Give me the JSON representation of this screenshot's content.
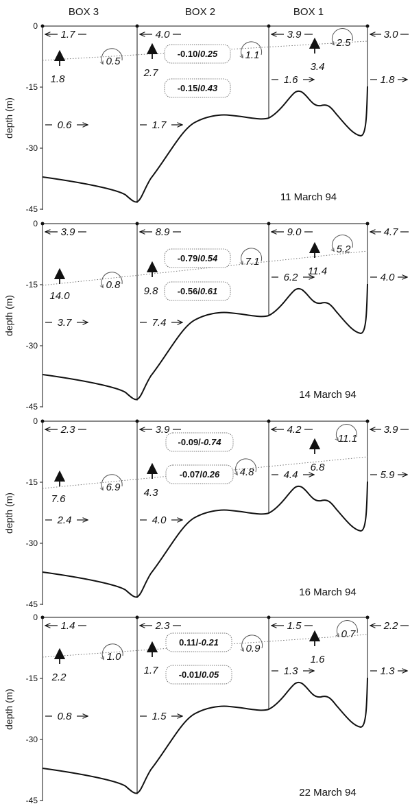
{
  "headers": {
    "box3": "BOX 3",
    "box2": "BOX 2",
    "box1": "BOX 1"
  },
  "axis": {
    "ylabel": "depth (m)",
    "ticks": [
      "0",
      "-15",
      "-30",
      "-45"
    ]
  },
  "panels": [
    {
      "date": "11 March 94",
      "top": {
        "w": "1.7",
        "b32": "4.0",
        "b21": "3.9",
        "e": "3.0"
      },
      "bottom": {
        "w": "0.6",
        "b32": "1.7",
        "b21": "1.6",
        "e": "1.8"
      },
      "vertical": {
        "b3": "1.8",
        "b2": "2.7",
        "b1": "3.4"
      },
      "mixing": {
        "b3": "0.5",
        "b2": "1.1",
        "b1": "2.5"
      },
      "flux_top": {
        "a": "-0.10/",
        "b": "0.25"
      },
      "flux_bottom": {
        "a": "-0.15/",
        "b": "0.43"
      }
    },
    {
      "date": "14 March 94",
      "top": {
        "w": "3.9",
        "b32": "8.9",
        "b21": "9.0",
        "e": "4.7"
      },
      "bottom": {
        "w": "3.7",
        "b32": "7.4",
        "b21": "6.2",
        "e": "4.0"
      },
      "vertical": {
        "b3": "14.0",
        "b2": "9.8",
        "b1": "11.4"
      },
      "mixing": {
        "b3": "0.8",
        "b2": "7.1",
        "b1": "5.2"
      },
      "flux_top": {
        "a": "-0.79/",
        "b": "0.54"
      },
      "flux_bottom": {
        "a": "-0.56/",
        "b": "0.61"
      }
    },
    {
      "date": "16 March 94",
      "top": {
        "w": "2.3",
        "b32": "3.9",
        "b21": "4.2",
        "e": "3.9"
      },
      "bottom": {
        "w": "2.4",
        "b32": "4.0",
        "b21": "4.4",
        "e": "5.9"
      },
      "vertical": {
        "b3": "7.6",
        "b2": "4.3",
        "b1": "6.8"
      },
      "mixing": {
        "b3": "6.9",
        "b2": "4.8",
        "b1": "11.1"
      },
      "flux_top": {
        "a": "-0.09/",
        "b": "-0.74"
      },
      "flux_bottom": {
        "a": "-0.07/",
        "b": "0.26"
      }
    },
    {
      "date": "22 March 94",
      "top": {
        "w": "1.4",
        "b32": "2.3",
        "b21": "1.5",
        "e": "2.2"
      },
      "bottom": {
        "w": "0.8",
        "b32": "1.5",
        "b21": "1.3",
        "e": "1.3"
      },
      "vertical": {
        "b3": "2.2",
        "b2": "1.7",
        "b1": "1.6"
      },
      "mixing": {
        "b3": "1.0",
        "b2": "0.9",
        "b1": "0.7"
      },
      "flux_top": {
        "a": "0.11/",
        "b": "-0.21"
      },
      "flux_bottom": {
        "a": "-0.01/",
        "b": "0.05"
      }
    }
  ]
}
